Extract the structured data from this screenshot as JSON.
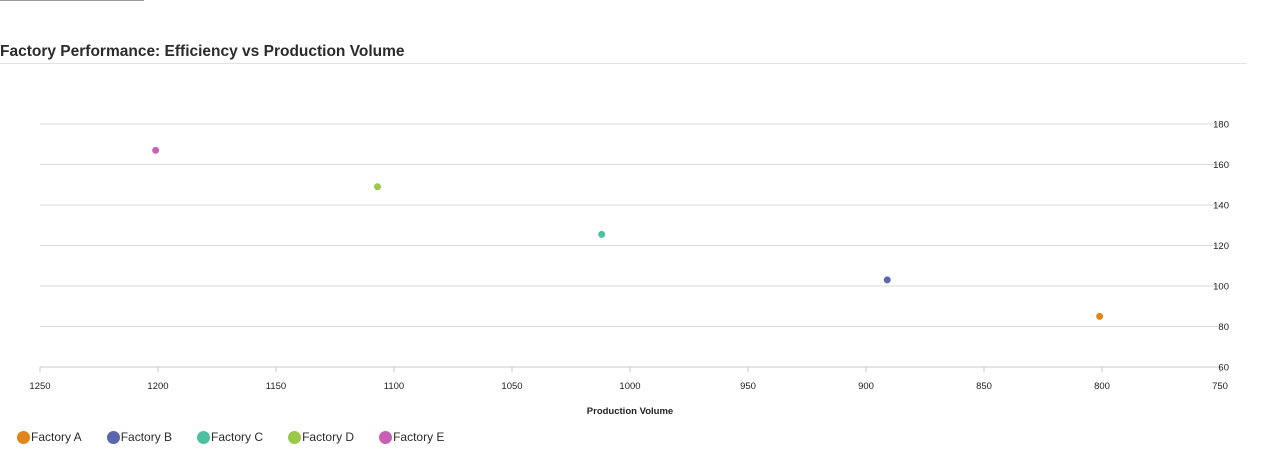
{
  "chart_data": {
    "type": "scatter",
    "title": "Factory Performance: Efficiency vs Production Volume",
    "xlabel": "Production Volume",
    "ylabel": "",
    "xlim": [
      1250,
      750
    ],
    "ylim": [
      60,
      180
    ],
    "x_reversed": true,
    "y_axis_side": "right",
    "x_ticks": [
      1250,
      1200,
      1150,
      1100,
      1050,
      1000,
      950,
      900,
      850,
      800,
      750
    ],
    "y_ticks": [
      60,
      80,
      100,
      120,
      140,
      160,
      180
    ],
    "grid": "horizontal",
    "legend": "bottom-left",
    "series": [
      {
        "name": "Factory A",
        "color": "#e0861a",
        "points": [
          {
            "x": 801,
            "y": 85
          }
        ]
      },
      {
        "name": "Factory B",
        "color": "#5b67ad",
        "points": [
          {
            "x": 891,
            "y": 103
          }
        ]
      },
      {
        "name": "Factory C",
        "color": "#4fbfa2",
        "points": [
          {
            "x": 1012,
            "y": 125.5
          }
        ]
      },
      {
        "name": "Factory D",
        "color": "#9bc74a",
        "points": [
          {
            "x": 1107,
            "y": 149
          }
        ]
      },
      {
        "name": "Factory E",
        "color": "#c860b6",
        "points": [
          {
            "x": 1201,
            "y": 167
          }
        ]
      }
    ]
  }
}
